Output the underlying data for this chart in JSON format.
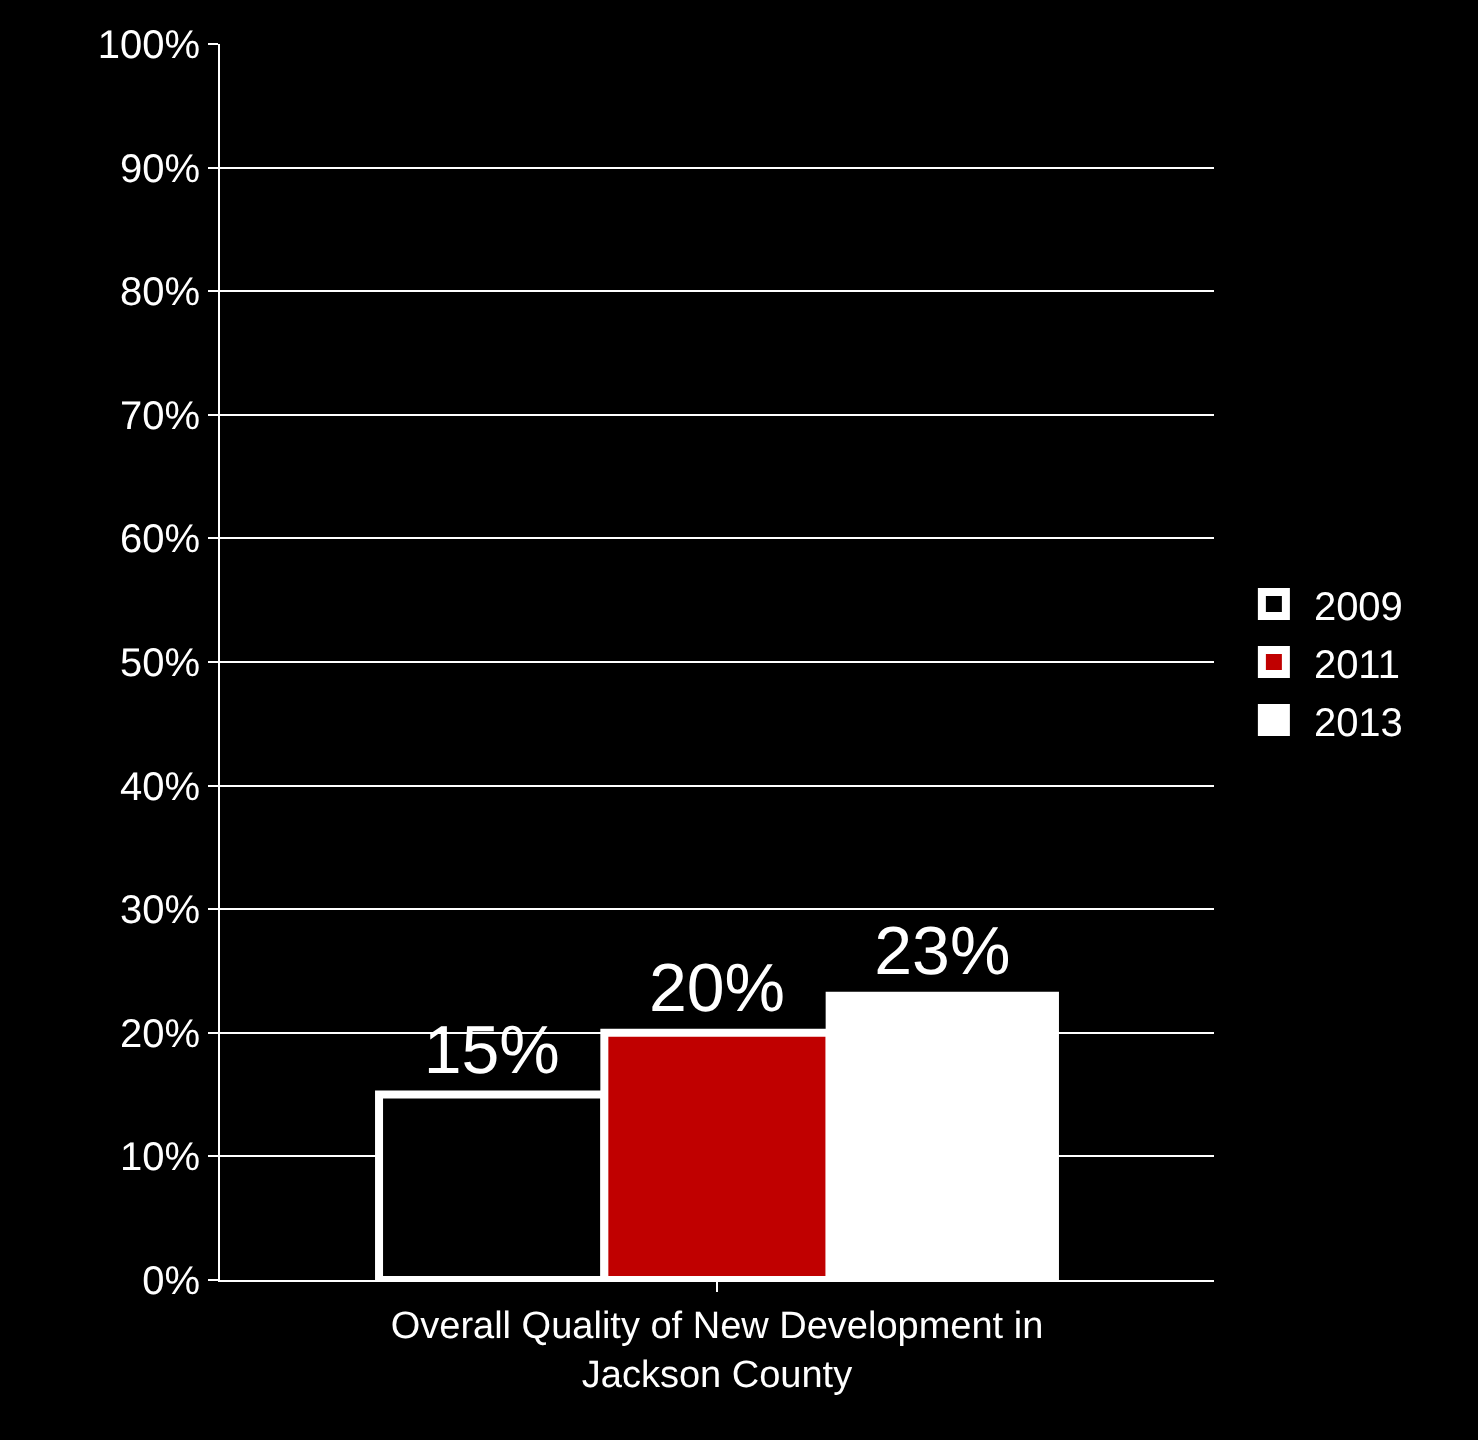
{
  "chart_data": {
    "type": "bar",
    "categories": [
      "Overall Quality of New Development in\nJackson County"
    ],
    "series": [
      {
        "name": "2009",
        "color": "#000000",
        "values": [
          15
        ],
        "value_labels": [
          "15%"
        ]
      },
      {
        "name": "2011",
        "color": "#c00000",
        "values": [
          20
        ],
        "value_labels": [
          "20%"
        ]
      },
      {
        "name": "2013",
        "color": "#ffffff",
        "values": [
          23
        ],
        "value_labels": [
          "23%"
        ]
      }
    ],
    "ylim": [
      0,
      100
    ],
    "yticks": [
      {
        "value": 0,
        "label": "0%"
      },
      {
        "value": 10,
        "label": "10%"
      },
      {
        "value": 20,
        "label": "20%"
      },
      {
        "value": 30,
        "label": "30%"
      },
      {
        "value": 40,
        "label": "40%"
      },
      {
        "value": 50,
        "label": "50%"
      },
      {
        "value": 60,
        "label": "60%"
      },
      {
        "value": 70,
        "label": "70%"
      },
      {
        "value": 80,
        "label": "80%"
      },
      {
        "value": 90,
        "label": "90%"
      },
      {
        "value": 100,
        "label": "100%"
      }
    ],
    "grid": "y",
    "legend": "right"
  }
}
